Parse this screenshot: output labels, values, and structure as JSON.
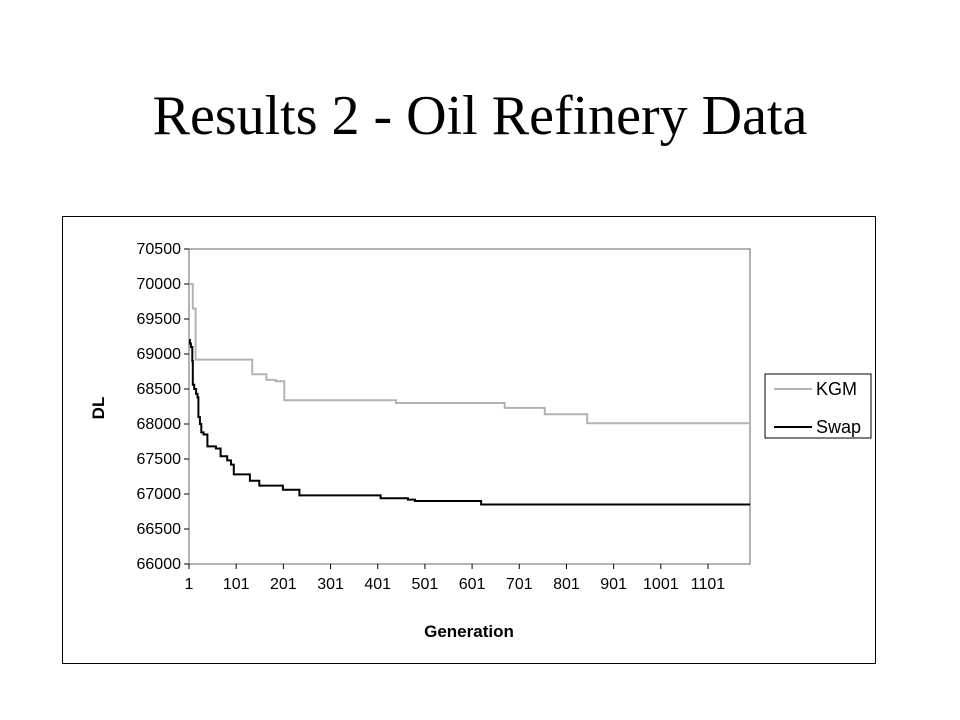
{
  "slide": {
    "title": "Results 2 - Oil Refinery Data"
  },
  "chart_data": {
    "type": "line",
    "title": "",
    "xlabel": "Generation",
    "ylabel": "DL",
    "xlim": [
      1,
      1190
    ],
    "ylim": [
      66000,
      70500
    ],
    "yticks": [
      66000,
      66500,
      67000,
      67500,
      68000,
      68500,
      69000,
      69500,
      70000,
      70500
    ],
    "xticks": [
      1,
      101,
      201,
      301,
      401,
      501,
      601,
      701,
      801,
      901,
      1001,
      1101
    ],
    "x_tick_labels": [
      "1",
      "101",
      "201",
      "301",
      "401",
      "501",
      "601",
      "701",
      "801",
      "901",
      "1001",
      "1101"
    ],
    "grid": false,
    "legend_position": "right",
    "colors": {
      "KGM": "#b3b3b3",
      "Swap": "#000000"
    },
    "series": [
      {
        "name": "KGM",
        "step": true,
        "points": [
          [
            1,
            70000
          ],
          [
            9,
            70000
          ],
          [
            9,
            69650
          ],
          [
            15,
            69650
          ],
          [
            15,
            68920
          ],
          [
            135,
            68920
          ],
          [
            135,
            68710
          ],
          [
            165,
            68710
          ],
          [
            165,
            68630
          ],
          [
            185,
            68630
          ],
          [
            185,
            68610
          ],
          [
            203,
            68610
          ],
          [
            203,
            68340
          ],
          [
            440,
            68340
          ],
          [
            440,
            68300
          ],
          [
            670,
            68300
          ],
          [
            670,
            68230
          ],
          [
            755,
            68230
          ],
          [
            755,
            68140
          ],
          [
            845,
            68140
          ],
          [
            845,
            68010
          ],
          [
            1190,
            68010
          ]
        ]
      },
      {
        "name": "Swap",
        "step": true,
        "points": [
          [
            1,
            69200
          ],
          [
            3,
            69200
          ],
          [
            3,
            69150
          ],
          [
            5,
            69150
          ],
          [
            5,
            69100
          ],
          [
            8,
            69100
          ],
          [
            8,
            68900
          ],
          [
            9,
            68900
          ],
          [
            9,
            68560
          ],
          [
            12,
            68560
          ],
          [
            12,
            68500
          ],
          [
            16,
            68500
          ],
          [
            16,
            68430
          ],
          [
            19,
            68430
          ],
          [
            19,
            68380
          ],
          [
            21,
            68380
          ],
          [
            21,
            68100
          ],
          [
            24,
            68100
          ],
          [
            24,
            68000
          ],
          [
            27,
            68000
          ],
          [
            27,
            67880
          ],
          [
            32,
            67880
          ],
          [
            32,
            67850
          ],
          [
            40,
            67850
          ],
          [
            40,
            67680
          ],
          [
            58,
            67680
          ],
          [
            58,
            67650
          ],
          [
            68,
            67650
          ],
          [
            68,
            67540
          ],
          [
            82,
            67540
          ],
          [
            82,
            67480
          ],
          [
            90,
            67480
          ],
          [
            90,
            67420
          ],
          [
            96,
            67420
          ],
          [
            96,
            67280
          ],
          [
            130,
            67280
          ],
          [
            130,
            67190
          ],
          [
            150,
            67190
          ],
          [
            150,
            67120
          ],
          [
            200,
            67120
          ],
          [
            200,
            67060
          ],
          [
            235,
            67060
          ],
          [
            235,
            66980
          ],
          [
            407,
            66980
          ],
          [
            407,
            66940
          ],
          [
            465,
            66940
          ],
          [
            465,
            66920
          ],
          [
            480,
            66920
          ],
          [
            480,
            66900
          ],
          [
            620,
            66900
          ],
          [
            620,
            66850
          ],
          [
            1190,
            66850
          ]
        ]
      }
    ]
  }
}
